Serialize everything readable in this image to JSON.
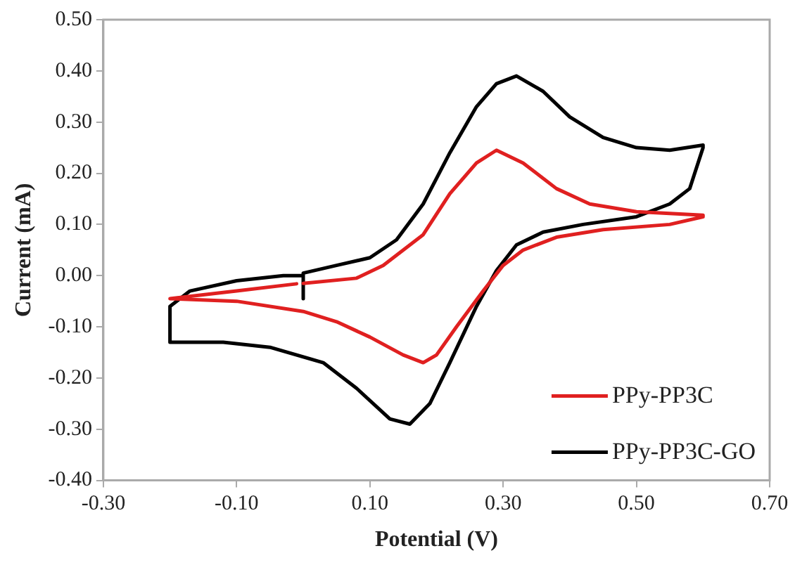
{
  "chart_data": {
    "type": "line",
    "xlabel": "Potential (V)",
    "ylabel": "Current (mA)",
    "xlim": [
      -0.3,
      0.7
    ],
    "xticks": [
      {
        "value": -0.3,
        "label": "-0.30"
      },
      {
        "value": -0.1,
        "label": "-0.10"
      },
      {
        "value": 0.1,
        "label": "0.10"
      },
      {
        "value": 0.3,
        "label": "0.30"
      },
      {
        "value": 0.5,
        "label": "0.50"
      },
      {
        "value": 0.7,
        "label": "0.70"
      }
    ],
    "ylim": [
      -0.4,
      0.5
    ],
    "yticks": [
      {
        "value": -0.4,
        "label": "-0.40"
      },
      {
        "value": -0.3,
        "label": "-0.30"
      },
      {
        "value": -0.2,
        "label": "-0.20"
      },
      {
        "value": -0.1,
        "label": "-0.10"
      },
      {
        "value": 0,
        "label": "0.00"
      },
      {
        "value": 0.1,
        "label": "0.10"
      },
      {
        "value": 0.2,
        "label": "0.20"
      },
      {
        "value": 0.3,
        "label": "0.30"
      },
      {
        "value": 0.4,
        "label": "0.40"
      },
      {
        "value": 0.5,
        "label": "0.50"
      }
    ],
    "grid": false,
    "legend": "bottom right",
    "marker": "none",
    "line_style": "solid",
    "series": [
      {
        "name": "PPy-PP3C",
        "color": "#e02020",
        "x": [
          0,
          0.08,
          0.12,
          0.18,
          0.22,
          0.26,
          0.29,
          0.33,
          0.38,
          0.43,
          0.5,
          0.6,
          0.6,
          0.55,
          0.45,
          0.38,
          0.33,
          0.3,
          0.27,
          0.23,
          0.2,
          0.18,
          0.15,
          0.1,
          0.05,
          0,
          -0.1,
          -0.2,
          -0.1,
          -0.01
        ],
        "values": [
          -0.015,
          -0.005,
          0.02,
          0.08,
          0.16,
          0.22,
          0.245,
          0.22,
          0.17,
          0.14,
          0.125,
          0.118,
          0.115,
          0.1,
          0.09,
          0.075,
          0.05,
          0.02,
          -0.03,
          -0.1,
          -0.155,
          -0.17,
          -0.155,
          -0.12,
          -0.09,
          -0.07,
          -0.05,
          -0.045,
          -0.03,
          -0.016
        ]
      },
      {
        "name": "PPy-PP3C-GO",
        "color": "#000000",
        "x": [
          0,
          0,
          0.05,
          0.1,
          0.14,
          0.18,
          0.22,
          0.26,
          0.29,
          0.32,
          0.36,
          0.4,
          0.45,
          0.5,
          0.55,
          0.6,
          0.6,
          0.58,
          0.55,
          0.5,
          0.42,
          0.36,
          0.32,
          0.29,
          0.26,
          0.22,
          0.19,
          0.16,
          0.13,
          0.08,
          0.03,
          -0.05,
          -0.12,
          -0.2,
          -0.2,
          -0.17,
          -0.1,
          -0.03,
          0
        ],
        "values": [
          -0.045,
          0.005,
          0.02,
          0.035,
          0.07,
          0.14,
          0.24,
          0.33,
          0.375,
          0.39,
          0.36,
          0.31,
          0.27,
          0.25,
          0.245,
          0.255,
          0.25,
          0.17,
          0.14,
          0.115,
          0.1,
          0.085,
          0.06,
          0.01,
          -0.06,
          -0.17,
          -0.25,
          -0.29,
          -0.28,
          -0.22,
          -0.17,
          -0.14,
          -0.13,
          -0.13,
          -0.06,
          -0.03,
          -0.01,
          0,
          0
        ]
      }
    ]
  }
}
